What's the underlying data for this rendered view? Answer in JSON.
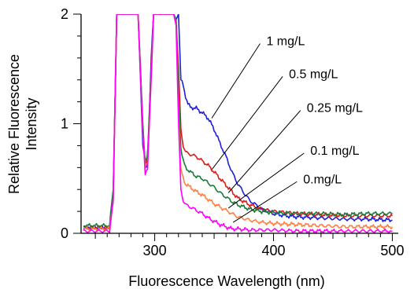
{
  "chart_data": {
    "type": "line",
    "xlabel": "Fluorescence Wavelength (nm)",
    "ylabel_lines": [
      "Relative Fluorescence",
      "Intensity"
    ],
    "xlim": [
      238,
      505
    ],
    "ylim": [
      0,
      2
    ],
    "x_ticks": [
      300,
      400,
      500
    ],
    "y_ticks": [
      0,
      1,
      2
    ],
    "grid": false,
    "legend_position": "none",
    "series": [
      {
        "name": "1 mg/L",
        "color": "#1f1fd6",
        "points": [
          [
            240,
            0.05
          ],
          [
            262,
            0.05
          ],
          [
            265,
            0.3
          ],
          [
            268,
            2
          ],
          [
            286,
            2
          ],
          [
            290,
            0.8
          ],
          [
            293,
            0.6
          ],
          [
            295,
            0.9
          ],
          [
            297,
            1.6
          ],
          [
            299,
            2
          ],
          [
            316,
            2
          ],
          [
            318,
            1.95
          ],
          [
            320,
            2
          ],
          [
            322,
            1.4
          ],
          [
            324,
            1.35
          ],
          [
            326,
            1.25
          ],
          [
            328,
            1.18
          ],
          [
            330,
            1.15
          ],
          [
            335,
            1.14
          ],
          [
            340,
            1.1
          ],
          [
            345,
            1.05
          ],
          [
            350,
            0.95
          ],
          [
            355,
            0.82
          ],
          [
            360,
            0.7
          ],
          [
            365,
            0.56
          ],
          [
            370,
            0.45
          ],
          [
            375,
            0.37
          ],
          [
            380,
            0.3
          ],
          [
            385,
            0.26
          ],
          [
            390,
            0.22
          ],
          [
            400,
            0.18
          ],
          [
            410,
            0.16
          ],
          [
            420,
            0.15
          ],
          [
            440,
            0.14
          ],
          [
            460,
            0.13
          ],
          [
            480,
            0.13
          ],
          [
            500,
            0.12
          ]
        ]
      },
      {
        "name": "0.5 mg/L",
        "color": "#e01a1a",
        "points": [
          [
            240,
            0.05
          ],
          [
            262,
            0.05
          ],
          [
            265,
            0.35
          ],
          [
            268,
            2
          ],
          [
            286,
            2
          ],
          [
            290,
            0.95
          ],
          [
            292,
            0.6
          ],
          [
            294,
            0.7
          ],
          [
            297,
            1.5
          ],
          [
            299,
            2
          ],
          [
            316,
            2
          ],
          [
            318,
            1.95
          ],
          [
            320,
            1.5
          ],
          [
            322,
            0.95
          ],
          [
            324,
            0.8
          ],
          [
            326,
            0.74
          ],
          [
            330,
            0.72
          ],
          [
            335,
            0.7
          ],
          [
            340,
            0.66
          ],
          [
            345,
            0.62
          ],
          [
            350,
            0.56
          ],
          [
            355,
            0.5
          ],
          [
            360,
            0.44
          ],
          [
            365,
            0.38
          ],
          [
            370,
            0.32
          ],
          [
            380,
            0.26
          ],
          [
            390,
            0.22
          ],
          [
            400,
            0.2
          ],
          [
            420,
            0.18
          ],
          [
            440,
            0.17
          ],
          [
            460,
            0.16
          ],
          [
            480,
            0.16
          ],
          [
            500,
            0.16
          ]
        ]
      },
      {
        "name": "0.25 mg/L",
        "color": "#1a7a3a",
        "points": [
          [
            240,
            0.07
          ],
          [
            262,
            0.07
          ],
          [
            265,
            0.4
          ],
          [
            268,
            2
          ],
          [
            286,
            2
          ],
          [
            290,
            1.0
          ],
          [
            292,
            0.65
          ],
          [
            294,
            0.7
          ],
          [
            297,
            1.5
          ],
          [
            299,
            2
          ],
          [
            316,
            2
          ],
          [
            318,
            1.95
          ],
          [
            320,
            1.3
          ],
          [
            322,
            0.78
          ],
          [
            324,
            0.66
          ],
          [
            326,
            0.6
          ],
          [
            330,
            0.56
          ],
          [
            335,
            0.52
          ],
          [
            340,
            0.5
          ],
          [
            345,
            0.46
          ],
          [
            350,
            0.42
          ],
          [
            355,
            0.37
          ],
          [
            360,
            0.33
          ],
          [
            365,
            0.29
          ],
          [
            370,
            0.26
          ],
          [
            380,
            0.22
          ],
          [
            390,
            0.2
          ],
          [
            400,
            0.19
          ],
          [
            420,
            0.18
          ],
          [
            440,
            0.18
          ],
          [
            460,
            0.17
          ],
          [
            480,
            0.18
          ],
          [
            500,
            0.18
          ]
        ]
      },
      {
        "name": "0.1 mg/L",
        "color": "#ff8040",
        "points": [
          [
            240,
            0.04
          ],
          [
            262,
            0.04
          ],
          [
            265,
            0.3
          ],
          [
            268,
            2
          ],
          [
            286,
            2
          ],
          [
            290,
            0.9
          ],
          [
            292,
            0.6
          ],
          [
            294,
            0.65
          ],
          [
            297,
            1.4
          ],
          [
            299,
            2
          ],
          [
            316,
            2
          ],
          [
            318,
            1.9
          ],
          [
            320,
            1.1
          ],
          [
            322,
            0.58
          ],
          [
            324,
            0.5
          ],
          [
            326,
            0.45
          ],
          [
            330,
            0.42
          ],
          [
            335,
            0.38
          ],
          [
            340,
            0.35
          ],
          [
            345,
            0.31
          ],
          [
            350,
            0.27
          ],
          [
            355,
            0.24
          ],
          [
            360,
            0.21
          ],
          [
            365,
            0.18
          ],
          [
            370,
            0.15
          ],
          [
            380,
            0.12
          ],
          [
            390,
            0.1
          ],
          [
            400,
            0.09
          ],
          [
            420,
            0.08
          ],
          [
            440,
            0.07
          ],
          [
            460,
            0.06
          ],
          [
            480,
            0.06
          ],
          [
            500,
            0.06
          ]
        ]
      },
      {
        "name": "0.mg/L",
        "color": "#ff00ff",
        "points": [
          [
            240,
            0.02
          ],
          [
            262,
            0.02
          ],
          [
            265,
            0.3
          ],
          [
            268,
            2
          ],
          [
            284,
            2
          ],
          [
            286,
            2
          ],
          [
            290,
            0.9
          ],
          [
            292,
            0.55
          ],
          [
            294,
            0.6
          ],
          [
            297,
            1.4
          ],
          [
            299,
            2
          ],
          [
            316,
            2
          ],
          [
            318,
            1.9
          ],
          [
            320,
            1.0
          ],
          [
            322,
            0.4
          ],
          [
            324,
            0.3
          ],
          [
            326,
            0.26
          ],
          [
            330,
            0.24
          ],
          [
            335,
            0.21
          ],
          [
            340,
            0.18
          ],
          [
            345,
            0.14
          ],
          [
            350,
            0.11
          ],
          [
            355,
            0.08
          ],
          [
            360,
            0.06
          ],
          [
            365,
            0.04
          ],
          [
            370,
            0.04
          ],
          [
            380,
            0.03
          ],
          [
            400,
            0.03
          ],
          [
            420,
            0.02
          ],
          [
            440,
            0.02
          ],
          [
            460,
            0.02
          ],
          [
            480,
            0.02
          ],
          [
            500,
            0.02
          ]
        ]
      }
    ],
    "annotations": [
      {
        "label": "1 mg/L",
        "point": [
          348,
          1.05
        ],
        "text_anchor": [
          394,
          1.76
        ]
      },
      {
        "label": "0.5 mg/L",
        "point": [
          348,
          0.58
        ],
        "text_anchor": [
          413,
          1.46
        ]
      },
      {
        "label": "0.25 mg/L",
        "point": [
          362,
          0.37
        ],
        "text_anchor": [
          428,
          1.15
        ]
      },
      {
        "label": "0.1 mg/L",
        "point": [
          362,
          0.23
        ],
        "text_anchor": [
          431,
          0.76
        ]
      },
      {
        "label": "0.mg/L",
        "point": [
          366,
          0.1
        ],
        "text_anchor": [
          425,
          0.5
        ]
      }
    ]
  }
}
